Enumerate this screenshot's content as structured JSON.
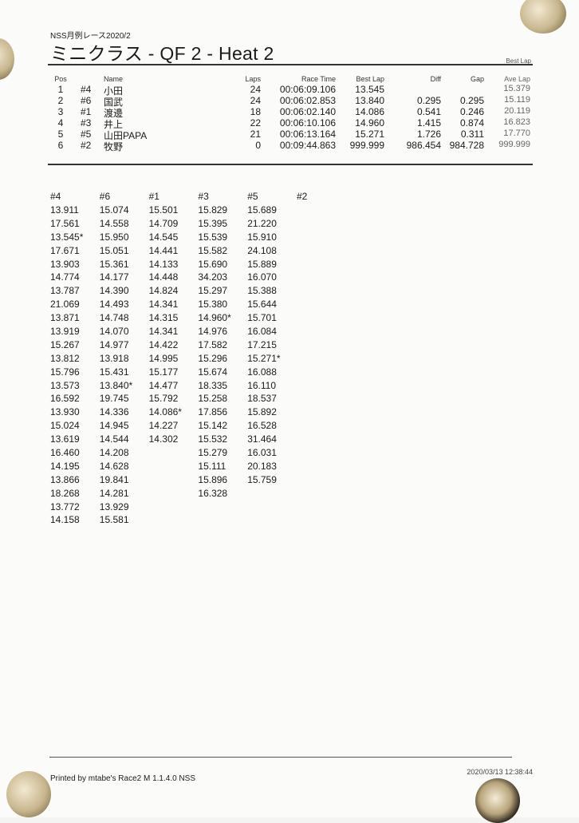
{
  "header": {
    "event": "NSS月例レース2020/2",
    "title": "ミニクラス  -  QF 2  -  Heat 2",
    "best_lap_note": "Best Lap"
  },
  "results": {
    "columns": [
      "Pos",
      "",
      "Name",
      "Laps",
      "Race Time",
      "Best Lap",
      "Diff",
      "Gap",
      "Ave Lap"
    ],
    "rows": [
      {
        "pos": "1",
        "num": "#4",
        "name": "小田",
        "laps": "24",
        "race_time": "00:06:09.106",
        "best_lap": "13.545",
        "diff": "",
        "gap": "",
        "ave_lap": "15.379"
      },
      {
        "pos": "2",
        "num": "#6",
        "name": "国武",
        "laps": "24",
        "race_time": "00:06:02.853",
        "best_lap": "13.840",
        "diff": "0.295",
        "gap": "0.295",
        "ave_lap": "15.119"
      },
      {
        "pos": "3",
        "num": "#1",
        "name": "渡邊",
        "laps": "18",
        "race_time": "00:06:02.140",
        "best_lap": "14.086",
        "diff": "0.541",
        "gap": "0.246",
        "ave_lap": "20.119"
      },
      {
        "pos": "4",
        "num": "#3",
        "name": "井上",
        "laps": "22",
        "race_time": "00:06:10.106",
        "best_lap": "14.960",
        "diff": "1.415",
        "gap": "0.874",
        "ave_lap": "16.823"
      },
      {
        "pos": "5",
        "num": "#5",
        "name": "山田PAPA",
        "laps": "21",
        "race_time": "00:06:13.164",
        "best_lap": "15.271",
        "diff": "1.726",
        "gap": "0.311",
        "ave_lap": "17.770"
      },
      {
        "pos": "6",
        "num": "#2",
        "name": "牧野",
        "laps": "0",
        "race_time": "00:09:44.863",
        "best_lap": "999.999",
        "diff": "986.454",
        "gap": "984.728",
        "ave_lap": "999.999"
      }
    ]
  },
  "lap_times": [
    {
      "car": "#4",
      "laps": [
        "13.911",
        "17.561",
        "13.545*",
        "17.671",
        "13.903",
        "14.774",
        "13.787",
        "21.069",
        "13.871",
        "13.919",
        "15.267",
        "13.812",
        "15.796",
        "13.573",
        "16.592",
        "13.930",
        "15.024",
        "13.619",
        "16.460",
        "14.195",
        "13.866",
        "18.268",
        "13.772",
        "14.158"
      ]
    },
    {
      "car": "#6",
      "laps": [
        "15.074",
        "14.558",
        "15.950",
        "15.051",
        "15.361",
        "14.177",
        "14.390",
        "14.493",
        "14.748",
        "14.070",
        "14.977",
        "13.918",
        "15.431",
        "13.840*",
        "19.745",
        "14.336",
        "14.945",
        "14.544",
        "14.208",
        "14.628",
        "19.841",
        "14.281",
        "13.929",
        "15.581"
      ]
    },
    {
      "car": "#1",
      "laps": [
        "15.501",
        "14.709",
        "14.545",
        "14.441",
        "14.133",
        "14.448",
        "14.824",
        "14.341",
        "14.315",
        "14.341",
        "14.422",
        "14.995",
        "15.177",
        "14.477",
        "15.792",
        "14.086*",
        "14.227",
        "14.302"
      ]
    },
    {
      "car": "#3",
      "laps": [
        "15.829",
        "15.395",
        "15.539",
        "15.582",
        "15.690",
        "34.203",
        "15.297",
        "15.380",
        "14.960*",
        "14.976",
        "17.582",
        "15.296",
        "15.674",
        "18.335",
        "15.258",
        "17.856",
        "15.142",
        "15.532",
        "15.279",
        "15.111",
        "15.896",
        "16.328"
      ]
    },
    {
      "car": "#5",
      "laps": [
        "15.689",
        "21.220",
        "15.910",
        "24.108",
        "15.889",
        "16.070",
        "15.388",
        "15.644",
        "15.701",
        "16.084",
        "17.215",
        "15.271*",
        "16.088",
        "16.110",
        "18.537",
        "15.892",
        "16.528",
        "31.464",
        "16.031",
        "20.183",
        "15.759"
      ]
    },
    {
      "car": "#2",
      "laps": []
    }
  ],
  "footer": {
    "printed_by": "Printed by mtabe's Race2 M  1.1.4.0  NSS",
    "timestamp": "2020/03/13 12:38:44"
  }
}
